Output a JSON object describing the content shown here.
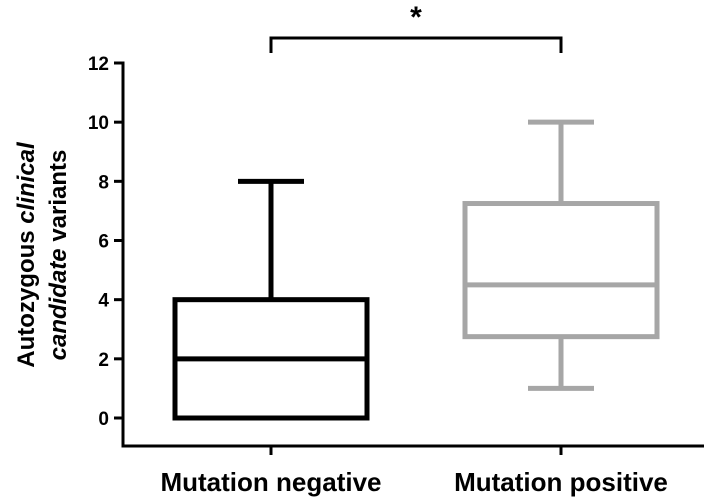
{
  "chart_data": {
    "type": "boxplot",
    "title": "",
    "xlabel": "",
    "ylabel_parts": [
      {
        "text": "Autozygous ",
        "italic": false,
        "line": 1
      },
      {
        "text": "clinical",
        "italic": true,
        "line": 1
      },
      {
        "text": "candidate",
        "italic": true,
        "line": 2
      },
      {
        "text": " variants",
        "italic": false,
        "line": 2
      }
    ],
    "ylim": [
      0,
      12
    ],
    "yticks": [
      "0",
      "2",
      "4",
      "6",
      "8",
      "10",
      "12"
    ],
    "categories": [
      "Mutation negative",
      "Mutation positive"
    ],
    "boxes": [
      {
        "category": "Mutation negative",
        "min": 0,
        "q1": 0,
        "median": 2,
        "q3": 4,
        "max": 8,
        "color": "#000000"
      },
      {
        "category": "Mutation positive",
        "min": 1,
        "q1": 2.75,
        "median": 4.5,
        "q3": 7.25,
        "max": 10,
        "color": "#a6a6a6"
      }
    ],
    "significance": {
      "between": [
        "Mutation negative",
        "Mutation positive"
      ],
      "label": "*"
    },
    "grid": false,
    "legend": "none"
  }
}
